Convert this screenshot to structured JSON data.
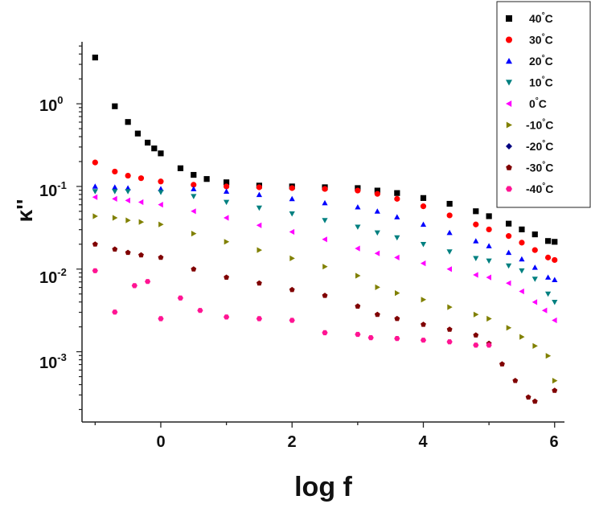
{
  "chart_data": {
    "type": "scatter",
    "xlabel": "log f",
    "ylabel": "κ''",
    "x_ticks": [
      "0",
      "2",
      "4",
      "6"
    ],
    "y_ticks": [
      {
        "base": "10",
        "exp": "0"
      },
      {
        "base": "10",
        "exp": "-1"
      },
      {
        "base": "10",
        "exp": "-2"
      },
      {
        "base": "10",
        "exp": "-3"
      }
    ],
    "xlim": [
      -1.2,
      6.15
    ],
    "ylim_log10": [
      -3.85,
      0.75
    ],
    "y_scale": "log",
    "legend_position": "top-right",
    "legend_unit": "°C",
    "series": [
      {
        "name": "40",
        "color": "#000000",
        "marker": "square",
        "points": [
          [
            -1,
            0.56
          ],
          [
            -0.7,
            -0.03
          ],
          [
            -0.5,
            -0.22
          ],
          [
            -0.35,
            -0.36
          ],
          [
            -0.2,
            -0.47
          ],
          [
            -0.1,
            -0.54
          ],
          [
            0,
            -0.6
          ],
          [
            0.3,
            -0.78
          ],
          [
            0.5,
            -0.86
          ],
          [
            0.7,
            -0.91
          ],
          [
            1,
            -0.95
          ],
          [
            1.5,
            -0.99
          ],
          [
            2,
            -1.0
          ],
          [
            2.5,
            -1.01
          ],
          [
            3,
            -1.02
          ],
          [
            3.3,
            -1.05
          ],
          [
            3.6,
            -1.08
          ],
          [
            4,
            -1.14
          ],
          [
            4.4,
            -1.21
          ],
          [
            4.8,
            -1.3
          ],
          [
            5,
            -1.36
          ],
          [
            5.3,
            -1.45
          ],
          [
            5.5,
            -1.52
          ],
          [
            5.7,
            -1.58
          ],
          [
            5.9,
            -1.66
          ],
          [
            6,
            -1.67
          ]
        ]
      },
      {
        "name": "30",
        "color": "#ff0000",
        "marker": "circle",
        "points": [
          [
            -1,
            -0.71
          ],
          [
            -0.7,
            -0.82
          ],
          [
            -0.5,
            -0.87
          ],
          [
            -0.3,
            -0.9
          ],
          [
            0,
            -0.94
          ],
          [
            0.5,
            -0.98
          ],
          [
            1,
            -1.0
          ],
          [
            1.5,
            -1.01
          ],
          [
            2,
            -1.02
          ],
          [
            2.5,
            -1.03
          ],
          [
            3,
            -1.05
          ],
          [
            3.3,
            -1.09
          ],
          [
            3.6,
            -1.15
          ],
          [
            4,
            -1.24
          ],
          [
            4.4,
            -1.35
          ],
          [
            4.8,
            -1.46
          ],
          [
            5,
            -1.52
          ],
          [
            5.3,
            -1.6
          ],
          [
            5.5,
            -1.68
          ],
          [
            5.7,
            -1.77
          ],
          [
            5.9,
            -1.86
          ],
          [
            6,
            -1.89
          ]
        ]
      },
      {
        "name": "20",
        "color": "#0000ff",
        "marker": "triangle-up",
        "points": [
          [
            -1,
            -1.0
          ],
          [
            -0.7,
            -1.01
          ],
          [
            -0.5,
            -1.02
          ],
          [
            0,
            -1.03
          ],
          [
            0.5,
            -1.03
          ],
          [
            1,
            -1.06
          ],
          [
            1.5,
            -1.1
          ],
          [
            2,
            -1.15
          ],
          [
            2.5,
            -1.2
          ],
          [
            3,
            -1.25
          ],
          [
            3.3,
            -1.3
          ],
          [
            3.6,
            -1.37
          ],
          [
            4,
            -1.46
          ],
          [
            4.4,
            -1.56
          ],
          [
            4.8,
            -1.66
          ],
          [
            5,
            -1.72
          ],
          [
            5.3,
            -1.8
          ],
          [
            5.5,
            -1.88
          ],
          [
            5.7,
            -1.98
          ],
          [
            5.9,
            -2.1
          ],
          [
            6,
            -2.13
          ]
        ]
      },
      {
        "name": "10",
        "color": "#008080",
        "marker": "triangle-down",
        "points": [
          [
            -1,
            -1.06
          ],
          [
            -0.7,
            -1.06
          ],
          [
            -0.5,
            -1.06
          ],
          [
            0,
            -1.07
          ],
          [
            0.5,
            -1.12
          ],
          [
            1,
            -1.19
          ],
          [
            1.5,
            -1.26
          ],
          [
            2,
            -1.33
          ],
          [
            2.5,
            -1.41
          ],
          [
            3,
            -1.49
          ],
          [
            3.3,
            -1.56
          ],
          [
            3.6,
            -1.62
          ],
          [
            4,
            -1.7
          ],
          [
            4.4,
            -1.79
          ],
          [
            4.8,
            -1.87
          ],
          [
            5,
            -1.9
          ],
          [
            5.3,
            -1.96
          ],
          [
            5.5,
            -2.02
          ],
          [
            5.7,
            -2.12
          ],
          [
            5.9,
            -2.3
          ],
          [
            6,
            -2.4
          ]
        ]
      },
      {
        "name": "0",
        "color": "#ff00ff",
        "marker": "triangle-left",
        "points": [
          [
            -1,
            -1.13
          ],
          [
            -0.7,
            -1.15
          ],
          [
            -0.5,
            -1.17
          ],
          [
            -0.3,
            -1.19
          ],
          [
            0,
            -1.22
          ],
          [
            0.5,
            -1.3
          ],
          [
            1,
            -1.38
          ],
          [
            1.5,
            -1.47
          ],
          [
            2,
            -1.55
          ],
          [
            2.5,
            -1.64
          ],
          [
            3,
            -1.75
          ],
          [
            3.3,
            -1.81
          ],
          [
            3.6,
            -1.86
          ],
          [
            4,
            -1.93
          ],
          [
            4.4,
            -2.0
          ],
          [
            4.8,
            -2.07
          ],
          [
            5,
            -2.1
          ],
          [
            5.3,
            -2.17
          ],
          [
            5.5,
            -2.27
          ],
          [
            5.7,
            -2.4
          ],
          [
            5.85,
            -2.5
          ],
          [
            6,
            -2.62
          ]
        ]
      },
      {
        "name": "-10",
        "color": "#808000",
        "marker": "triangle-right",
        "points": [
          [
            -1,
            -1.36
          ],
          [
            -0.7,
            -1.38
          ],
          [
            -0.5,
            -1.41
          ],
          [
            -0.3,
            -1.43
          ],
          [
            0,
            -1.46
          ],
          [
            0.5,
            -1.57
          ],
          [
            1,
            -1.67
          ],
          [
            1.5,
            -1.77
          ],
          [
            2,
            -1.87
          ],
          [
            2.5,
            -1.97
          ],
          [
            3,
            -2.08
          ],
          [
            3.3,
            -2.22
          ],
          [
            3.6,
            -2.29
          ],
          [
            4,
            -2.37
          ],
          [
            4.4,
            -2.46
          ],
          [
            4.8,
            -2.55
          ],
          [
            5,
            -2.6
          ],
          [
            5.3,
            -2.71
          ],
          [
            5.5,
            -2.82
          ],
          [
            5.7,
            -2.93
          ],
          [
            5.9,
            -3.05
          ],
          [
            6,
            -3.35
          ]
        ]
      },
      {
        "name": "-20",
        "color": "#000080",
        "marker": "diamond",
        "points": []
      },
      {
        "name": "-30",
        "color": "#800000",
        "marker": "pentagon",
        "points": [
          [
            -1,
            -1.7
          ],
          [
            -0.7,
            -1.76
          ],
          [
            -0.5,
            -1.8
          ],
          [
            -0.3,
            -1.83
          ],
          [
            0,
            -1.86
          ],
          [
            0.5,
            -2.0
          ],
          [
            1,
            -2.1
          ],
          [
            1.5,
            -2.17
          ],
          [
            2,
            -2.25
          ],
          [
            2.5,
            -2.32
          ],
          [
            3,
            -2.45
          ],
          [
            3.3,
            -2.55
          ],
          [
            3.6,
            -2.6
          ],
          [
            4,
            -2.67
          ],
          [
            4.4,
            -2.73
          ],
          [
            4.8,
            -2.8
          ],
          [
            5,
            -2.9
          ],
          [
            5.2,
            -3.15
          ],
          [
            5.4,
            -3.35
          ],
          [
            5.6,
            -3.55
          ],
          [
            5.7,
            -3.6
          ],
          [
            6,
            -3.47
          ]
        ]
      },
      {
        "name": "-40",
        "color": "#ff1493",
        "marker": "hexagon",
        "points": [
          [
            -1,
            -2.02
          ],
          [
            -0.7,
            -2.52
          ],
          [
            -0.4,
            -2.2
          ],
          [
            -0.2,
            -2.15
          ],
          [
            0,
            -2.6
          ],
          [
            0.3,
            -2.35
          ],
          [
            0.6,
            -2.5
          ],
          [
            1,
            -2.58
          ],
          [
            1.5,
            -2.6
          ],
          [
            2,
            -2.62
          ],
          [
            2.5,
            -2.77
          ],
          [
            3,
            -2.79
          ],
          [
            3.2,
            -2.83
          ],
          [
            3.6,
            -2.84
          ],
          [
            4,
            -2.86
          ],
          [
            4.4,
            -2.88
          ],
          [
            4.8,
            -2.92
          ],
          [
            5,
            -2.92
          ]
        ]
      }
    ]
  }
}
